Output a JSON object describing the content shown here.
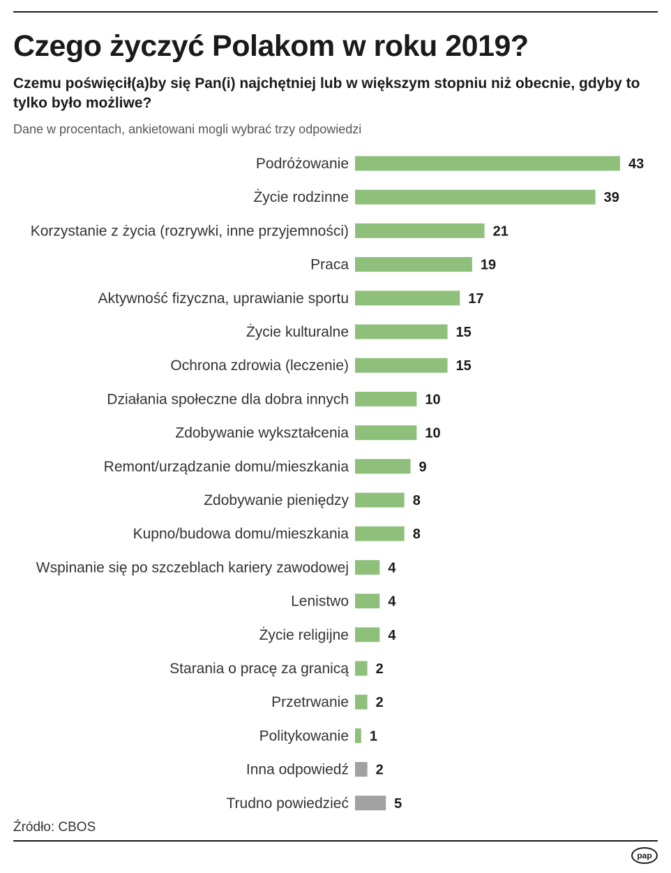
{
  "header": {
    "title": "Czego życzyć Polakom w roku 2019?",
    "subtitle": "Czemu poświęcił(a)by się Pan(i) najchętniej lub w większym stopniu niż obecnie, gdyby to tylko było możliwe?",
    "note": "Dane w procentach, ankietowani mogli wybrać trzy odpowiedzi"
  },
  "footer": {
    "source": "Źródło: CBOS",
    "logo_text": "pap"
  },
  "colors": {
    "bar_main": "#8ec07c",
    "bar_other": "#a1a1a1",
    "rule": "#1a1a1a"
  },
  "chart_data": {
    "type": "bar",
    "orientation": "horizontal",
    "title": "Czego życzyć Polakom w roku 2019?",
    "xlabel": "",
    "ylabel": "",
    "xlim": [
      0,
      43
    ],
    "grid": false,
    "categories": [
      "Podróżowanie",
      "Życie rodzinne",
      "Korzystanie z życia (rozrywki, inne przyjemności)",
      "Praca",
      "Aktywność fizyczna, uprawianie sportu",
      "Życie kulturalne",
      "Ochrona zdrowia (leczenie)",
      "Działania społeczne dla dobra innych",
      "Zdobywanie wykształcenia",
      "Remont/urządzanie domu/mieszkania",
      "Zdobywanie pieniędzy",
      "Kupno/budowa domu/mieszkania",
      "Wspinanie się po szczeblach kariery zawodowej",
      "Lenistwo",
      "Życie religijne",
      "Starania o pracę za granicą",
      "Przetrwanie",
      "Politykowanie",
      "Inna odpowiedź",
      "Trudno powiedzieć"
    ],
    "values": [
      43,
      39,
      21,
      19,
      17,
      15,
      15,
      10,
      10,
      9,
      8,
      8,
      4,
      4,
      4,
      2,
      2,
      1,
      2,
      5
    ],
    "groups": [
      "main",
      "main",
      "main",
      "main",
      "main",
      "main",
      "main",
      "main",
      "main",
      "main",
      "main",
      "main",
      "main",
      "main",
      "main",
      "main",
      "main",
      "main",
      "other",
      "other"
    ]
  }
}
